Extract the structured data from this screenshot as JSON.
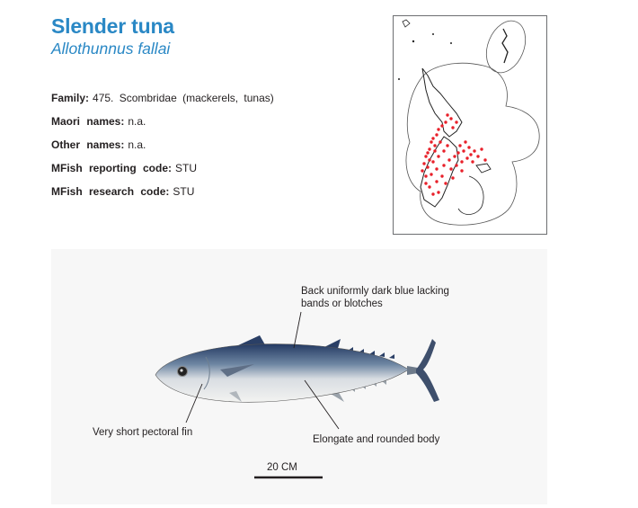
{
  "header": {
    "common_name": "Slender tuna",
    "scientific_name": "Allothunnus fallai"
  },
  "info": [
    {
      "label": "Family:",
      "value": "475. Scombridae  (mackerels,  tunas)"
    },
    {
      "label": "Maori names:",
      "value": "n.a."
    },
    {
      "label": "Other names:",
      "value": "n.a."
    },
    {
      "label": "MFish reporting code:",
      "value": "STU"
    },
    {
      "label": "MFish research code:",
      "value": "STU"
    }
  ],
  "colors": {
    "title": "#2a88c5",
    "map_points": "#e8202a",
    "fish_back": "#2a3f66"
  },
  "figure": {
    "annotation_back": [
      "Back uniformly dark blue lacking",
      "bands or blotches"
    ],
    "annotation_pectoral": "Very short pectoral fin",
    "annotation_body": "Elongate and rounded body",
    "scale_label": "20 CM"
  }
}
